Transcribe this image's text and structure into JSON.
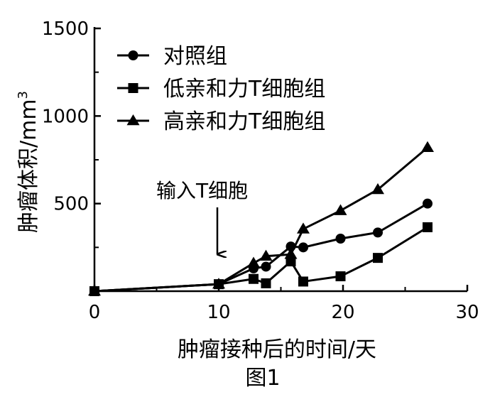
{
  "chart_data": {
    "type": "line",
    "xlabel": "肿瘤接种后的时间/天",
    "ylabel": "肿瘤体积/mm",
    "ylabel_sup": "3",
    "caption": "图1",
    "xlim": [
      0,
      30
    ],
    "ylim": [
      0,
      1500
    ],
    "x_ticks": [
      0,
      10,
      20,
      30
    ],
    "y_ticks": [
      500,
      1000,
      1500
    ],
    "grid": false,
    "legend_position": "top-left",
    "annotation": {
      "text": "输入T细胞",
      "x": 10
    },
    "series": [
      {
        "name": "对照组",
        "marker": "circle",
        "x": [
          0,
          10,
          12.8,
          13.8,
          15.8,
          16.8,
          19.8,
          22.8,
          26.8
        ],
        "y": [
          0,
          40,
          130,
          140,
          255,
          250,
          300,
          335,
          500
        ]
      },
      {
        "name": "低亲和力T细胞组",
        "marker": "square",
        "x": [
          0,
          10,
          12.8,
          13.8,
          15.8,
          16.8,
          19.8,
          22.8,
          26.8
        ],
        "y": [
          0,
          40,
          70,
          45,
          170,
          55,
          85,
          190,
          365
        ]
      },
      {
        "name": "高亲和力T细胞组",
        "marker": "triangle",
        "x": [
          0,
          10,
          12.8,
          13.8,
          15.8,
          16.8,
          19.8,
          22.8,
          26.8
        ],
        "y": [
          0,
          40,
          160,
          200,
          210,
          355,
          460,
          580,
          820
        ]
      }
    ]
  }
}
